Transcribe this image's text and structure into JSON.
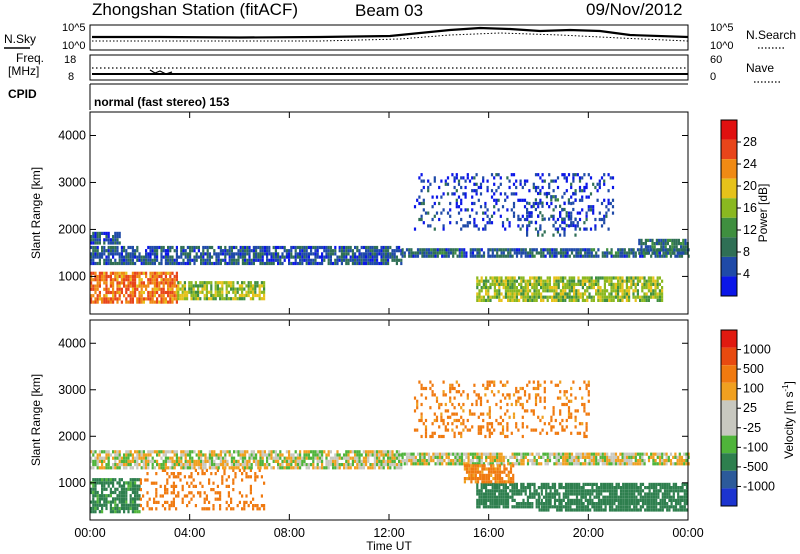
{
  "header": {
    "station": "Zhongshan Station (fitACF)",
    "beam": "Beam 03",
    "date": "09/Nov/2012"
  },
  "summary_panels": {
    "nsky_label": "N.Sky",
    "nsky_ticks": [
      "10^5",
      "10^0"
    ],
    "nsearch_label": "N.Search",
    "nsearch_ticks": [
      "10^5",
      "10^0"
    ],
    "freq_label_line1": "Freq.",
    "freq_label_line2": "[MHz]",
    "freq_ticks": [
      "18",
      "8"
    ],
    "nave_label": "Nave",
    "nave_ticks": [
      "60",
      "0"
    ],
    "cpid_label": "CPID",
    "cpid_text": "normal (fast stereo) 153"
  },
  "chart_data": [
    {
      "type": "heatmap",
      "title": "",
      "panel": "power",
      "ylabel": "Slant Range [km]",
      "ylim": [
        200,
        4500
      ],
      "yticks": [
        "4000",
        "3000",
        "2000",
        "1000"
      ],
      "xlim_hours": [
        0,
        24
      ],
      "colorbar_label": "Power [dB]",
      "colorbar_ticks": [
        "28",
        "24",
        "20",
        "16",
        "12",
        "8",
        "4"
      ],
      "colorbar_colors": [
        "#0b16e8",
        "#1f4aa8",
        "#2f6f55",
        "#3f8f3f",
        "#8ab820",
        "#e6c21a",
        "#f08a14",
        "#e8451a",
        "#e01010"
      ],
      "echo_regions": [
        {
          "t0": 0.0,
          "t1": 3.5,
          "r0": 450,
          "r1": 1100,
          "v": 26
        },
        {
          "t0": 3.5,
          "t1": 7.0,
          "r0": 500,
          "r1": 900,
          "v": 18
        },
        {
          "t0": 0.0,
          "t1": 12.5,
          "r0": 1300,
          "r1": 1650,
          "v": 8
        },
        {
          "t0": 0.0,
          "t1": 1.2,
          "r0": 1700,
          "r1": 1950,
          "v": 8
        },
        {
          "t0": 12.5,
          "t1": 24.0,
          "r0": 1400,
          "r1": 1600,
          "v": 9
        },
        {
          "t0": 15.5,
          "t1": 23.0,
          "r0": 500,
          "r1": 1000,
          "v": 18
        },
        {
          "t0": 17.5,
          "t1": 19.5,
          "r0": 1900,
          "r1": 2800,
          "v": 9
        },
        {
          "t0": 13.0,
          "t1": 21.0,
          "r0": 2000,
          "r1": 3200,
          "v": 6
        },
        {
          "t0": 22.0,
          "t1": 24.0,
          "r0": 1500,
          "r1": 1800,
          "v": 10
        }
      ]
    },
    {
      "type": "heatmap",
      "title": "",
      "panel": "velocity",
      "ylabel": "Slant Range [km]",
      "ylim": [
        200,
        4500
      ],
      "yticks": [
        "4000",
        "3000",
        "2000",
        "1000"
      ],
      "xlim_hours": [
        0,
        24
      ],
      "xticks": [
        "00:00",
        "04:00",
        "08:00",
        "12:00",
        "16:00",
        "20:00",
        "00:00"
      ],
      "xlabel": "Time UT",
      "colorbar_label": "Velocity [m s",
      "colorbar_label_sup": "-1",
      "colorbar_label_end": "]",
      "colorbar_ticks": [
        "1000",
        "500",
        "100",
        "25",
        "-25",
        "-100",
        "-500",
        "-1000"
      ],
      "colorbar_colors": [
        "#1c34d0",
        "#2c5a9a",
        "#2e7f4e",
        "#4fb43a",
        "#c8c8c0",
        "#c8c8c0",
        "#f0a020",
        "#f07a10",
        "#e84a10",
        "#e01a10"
      ],
      "echo_regions": [
        {
          "t0": 0.0,
          "t1": 2.0,
          "r0": 400,
          "r1": 1100,
          "v": 150
        },
        {
          "t0": 2.0,
          "t1": 7.0,
          "r0": 450,
          "r1": 1300,
          "v": -200
        },
        {
          "t0": 0.0,
          "t1": 12.5,
          "r0": 1350,
          "r1": 1700,
          "v": 0
        },
        {
          "t0": 12.5,
          "t1": 24.0,
          "r0": 1400,
          "r1": 1650,
          "v": 0
        },
        {
          "t0": 15.5,
          "t1": 18.0,
          "r0": 500,
          "r1": 1000,
          "v": 300
        },
        {
          "t0": 18.0,
          "t1": 24.0,
          "r0": 400,
          "r1": 1000,
          "v": 250
        },
        {
          "t0": 15.0,
          "t1": 17.0,
          "r0": 1000,
          "r1": 1400,
          "v": -150
        },
        {
          "t0": 13.0,
          "t1": 20.0,
          "r0": 2000,
          "r1": 3200,
          "v": -150
        }
      ]
    }
  ]
}
